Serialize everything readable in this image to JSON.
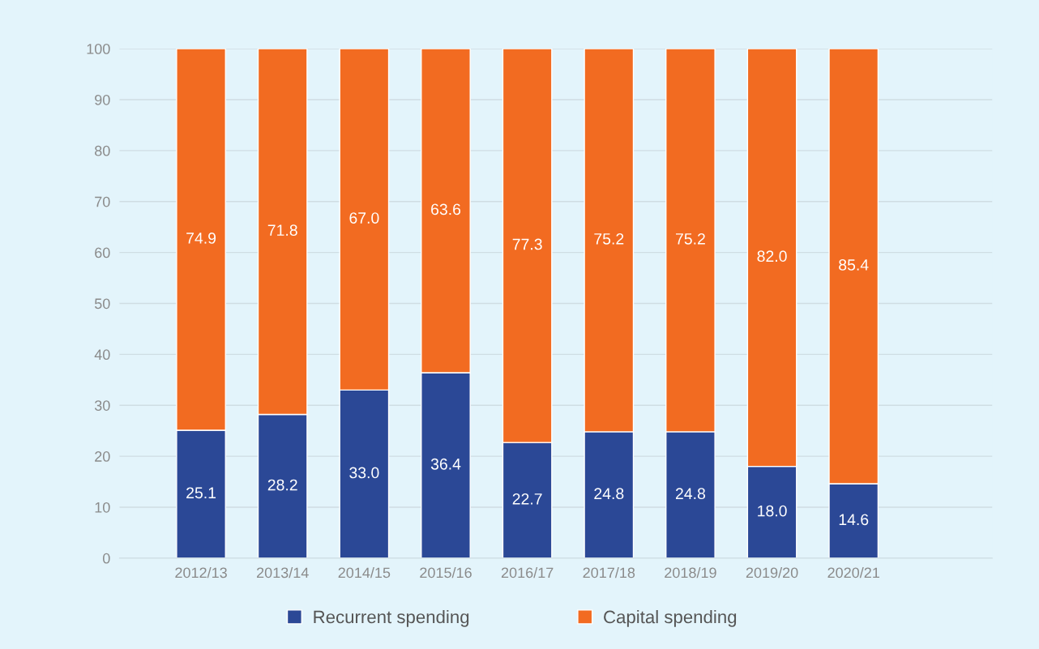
{
  "chart_data": {
    "type": "bar",
    "stacked": true,
    "categories": [
      "2012/13",
      "2013/14",
      "2014/15",
      "2015/16",
      "2016/17",
      "2017/18",
      "2018/19",
      "2019/20",
      "2020/21"
    ],
    "series": [
      {
        "name": "Recurrent spending",
        "color": "#2b4896",
        "values": [
          25.1,
          28.2,
          33.0,
          36.4,
          22.7,
          24.8,
          24.8,
          18.0,
          14.6
        ],
        "value_labels": [
          "25.1",
          "28.2",
          "33.0",
          "36.4",
          "22.7",
          "24.8",
          "24.8",
          "18.0",
          "14.6"
        ]
      },
      {
        "name": "Capital spending",
        "color": "#f26b21",
        "values": [
          74.9,
          71.8,
          67.0,
          63.6,
          77.3,
          75.2,
          75.2,
          82.0,
          85.4
        ],
        "value_labels": [
          "74.9",
          "71.8",
          "67.0",
          "63.6",
          "77.3",
          "75.2",
          "75.2",
          "82.0",
          "85.4"
        ]
      }
    ],
    "ylim": [
      0,
      100
    ],
    "yticks": [
      0,
      10,
      20,
      30,
      40,
      50,
      60,
      70,
      80,
      90,
      100
    ],
    "grid": "y",
    "legend": "bottom"
  }
}
